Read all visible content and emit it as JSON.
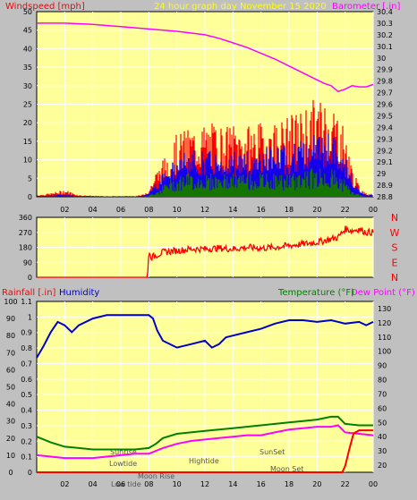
{
  "header": {
    "windspeed_label": "Windspeed [mph]",
    "title": "24 hour graph day   November 15 2020",
    "barometer_label": "Barometer [.in]",
    "rainfall_label": "Rainfall [.in]",
    "humidity_label": "Humidity",
    "temperature_label": "Temperature (°F)",
    "dewpoint_label": "Dew Point (°F)"
  },
  "colors": {
    "background": "#c0c0c0",
    "plot_bg": "#ffff99",
    "wind_gust": "#ff0000",
    "wind_avg": "#0000ff",
    "wind_low": "#008000",
    "barometer": "#ff00ff",
    "direction": "#ff0000",
    "humidity": "#0000cc",
    "temperature": "#008000",
    "dewpoint": "#ff00ff",
    "rainfall": "#ff0000"
  },
  "chart_data": [
    {
      "type": "line",
      "name": "wind",
      "x_ticks": [
        "02",
        "04",
        "06",
        "08",
        "10",
        "12",
        "14",
        "16",
        "18",
        "20",
        "22",
        "00"
      ],
      "x_tick_hours": [
        2,
        4,
        6,
        8,
        10,
        12,
        14,
        16,
        18,
        20,
        22,
        24
      ],
      "ylim_left": [
        0,
        50
      ],
      "y_ticks_left": [
        "0",
        "5",
        "10",
        "15",
        "20",
        "25",
        "30",
        "35",
        "40",
        "45",
        "50"
      ],
      "ylim_right": [
        28.8,
        30.4
      ],
      "y_ticks_right": [
        "28.8",
        "28.9",
        "29",
        "29.1",
        "29.2",
        "29.3",
        "29.4",
        "29.5",
        "29.6",
        "29.7",
        "29.8",
        "29.9",
        "30",
        "30.1",
        "30.2",
        "30.3",
        "30.4"
      ],
      "wind_envelope": {
        "hours": [
          0,
          1,
          2,
          3,
          4,
          5,
          6,
          7,
          7.5,
          8,
          8.5,
          9,
          9.5,
          10,
          10.5,
          11,
          11.5,
          12,
          12.5,
          13,
          13.5,
          14,
          14.5,
          15,
          15.5,
          16,
          16.5,
          17,
          17.5,
          18,
          18.5,
          19,
          19.5,
          20,
          20.5,
          21,
          21.5,
          22,
          22.5,
          23,
          23.5,
          24
        ],
        "gust": [
          0.5,
          1,
          2,
          0.5,
          0.3,
          0.2,
          0.2,
          0.3,
          0.5,
          2,
          7,
          10,
          14,
          17,
          18,
          19,
          19,
          20,
          20,
          20,
          19,
          20,
          19,
          19,
          20,
          20,
          20,
          21,
          21,
          22,
          23,
          24,
          26,
          27,
          27,
          26,
          24,
          18,
          8,
          3,
          1,
          1
        ],
        "avg": [
          0.2,
          0.3,
          0.5,
          0.2,
          0.1,
          0.1,
          0.1,
          0.1,
          0.2,
          1,
          3,
          5,
          7,
          8,
          9,
          9,
          9,
          9,
          9,
          9,
          9,
          9,
          9,
          9,
          9,
          10,
          10,
          10,
          10,
          10,
          11,
          11,
          12,
          13,
          13,
          12,
          11,
          8,
          4,
          1.5,
          0.5,
          0.5
        ],
        "low": [
          0,
          0,
          0,
          0,
          0,
          0,
          0,
          0,
          0,
          0.2,
          1,
          2,
          3,
          3.5,
          4,
          4,
          4,
          4,
          4,
          4,
          4,
          4,
          4,
          4,
          4,
          4,
          4,
          4,
          4,
          4,
          4,
          5,
          5,
          5,
          5,
          5,
          4,
          3,
          1,
          0.5,
          0,
          0
        ]
      },
      "series": [
        {
          "name": "Barometer",
          "hours": [
            0,
            2,
            4,
            6,
            8,
            10,
            12,
            13,
            14,
            15,
            16,
            17,
            18,
            19,
            20,
            20.5,
            21,
            21.5,
            22,
            22.5,
            23,
            23.5,
            24
          ],
          "values": [
            30.3,
            30.3,
            30.29,
            30.27,
            30.25,
            30.23,
            30.2,
            30.17,
            30.13,
            30.09,
            30.04,
            29.99,
            29.93,
            29.87,
            29.81,
            29.78,
            29.76,
            29.71,
            29.73,
            29.76,
            29.75,
            29.75,
            29.77
          ]
        }
      ]
    },
    {
      "type": "line",
      "name": "direction",
      "ylim": [
        0,
        360
      ],
      "y_ticks": [
        "0",
        "90",
        "180",
        "270",
        "360"
      ],
      "compass_labels": [
        "N",
        "W",
        "S",
        "E",
        "N"
      ],
      "series": [
        {
          "name": "Direction",
          "hours": [
            0,
            7.9,
            8.0,
            8.2,
            9,
            10,
            11,
            12,
            13,
            14,
            15,
            16,
            17,
            18,
            19,
            20,
            20.5,
            21,
            21.5,
            22,
            22.5,
            23,
            23.5,
            24
          ],
          "values": [
            0,
            0,
            150,
            120,
            150,
            160,
            170,
            170,
            175,
            170,
            180,
            175,
            180,
            190,
            200,
            210,
            220,
            230,
            240,
            290,
            280,
            290,
            270,
            270
          ]
        }
      ]
    },
    {
      "type": "line",
      "name": "climate",
      "x_ticks": [
        "02",
        "04",
        "06",
        "08",
        "10",
        "12",
        "14",
        "16",
        "18",
        "20",
        "22",
        "00"
      ],
      "x_tick_hours": [
        2,
        4,
        6,
        8,
        10,
        12,
        14,
        16,
        18,
        20,
        22,
        24
      ],
      "y_ticks_humidity": [
        "0",
        "10",
        "20",
        "30",
        "40",
        "50",
        "60",
        "70",
        "80",
        "90",
        "100"
      ],
      "ylim_rain": [
        0,
        1.1
      ],
      "y_ticks_rain": [
        "0",
        "0.1",
        "0.2",
        "0.3",
        "0.4",
        "0.5",
        "0.6",
        "0.7",
        "0.8",
        "0.9",
        "1",
        "1.1"
      ],
      "ylim_temp": [
        15,
        135
      ],
      "y_ticks_temp": [
        "20",
        "30",
        "40",
        "50",
        "60",
        "70",
        "80",
        "90",
        "100",
        "110",
        "120",
        "130"
      ],
      "annotations": [
        "Sunrise",
        "Lowtide",
        "Low tide",
        "Moon Rise",
        "Hightide",
        "SunSet",
        "Moon Set"
      ],
      "series": [
        {
          "name": "Humidity",
          "hours": [
            0,
            0.5,
            1,
            1.5,
            2,
            2.5,
            3,
            4,
            5,
            6,
            7,
            8,
            8.3,
            8.6,
            9,
            10,
            11,
            12,
            12.5,
            13,
            13.5,
            14,
            15,
            16,
            17,
            18,
            19,
            20,
            21,
            22,
            23,
            23.5,
            24
          ],
          "values": [
            67,
            74,
            82,
            88,
            86,
            82,
            86,
            90,
            92,
            92,
            92,
            92,
            90,
            83,
            77,
            73,
            75,
            77,
            73,
            75,
            79,
            80,
            82,
            84,
            87,
            89,
            89,
            88,
            89,
            87,
            88,
            86,
            88
          ]
        },
        {
          "name": "Temperature",
          "hours": [
            0,
            1,
            2,
            3,
            4,
            5,
            6,
            7,
            8,
            8.5,
            9,
            10,
            11,
            12,
            13,
            14,
            15,
            16,
            17,
            18,
            19,
            20,
            21,
            21.5,
            22,
            23,
            24
          ],
          "values": [
            40,
            36,
            33,
            32,
            31,
            31,
            31,
            31,
            32,
            35,
            39,
            42,
            43,
            44,
            45,
            46,
            47,
            48,
            49,
            50,
            51,
            52,
            54,
            54,
            49,
            48,
            48
          ]
        },
        {
          "name": "Dew Point",
          "hours": [
            0,
            1,
            2,
            3,
            4,
            5,
            6,
            7,
            8,
            9,
            10,
            11,
            12,
            13,
            14,
            15,
            16,
            17,
            18,
            19,
            20,
            21,
            21.5,
            22,
            23,
            24
          ],
          "values": [
            27,
            26,
            25,
            25,
            25,
            26,
            27,
            28,
            28,
            32,
            35,
            37,
            38,
            39,
            40,
            41,
            41,
            43,
            45,
            46,
            47,
            47,
            48,
            43,
            42,
            41
          ]
        },
        {
          "name": "Rainfall",
          "hours": [
            0,
            21.8,
            22,
            22.3,
            22.6,
            23,
            23.4,
            24
          ],
          "values": [
            0,
            0,
            0.04,
            0.15,
            0.25,
            0.27,
            0.27,
            0.27
          ]
        }
      ]
    }
  ]
}
